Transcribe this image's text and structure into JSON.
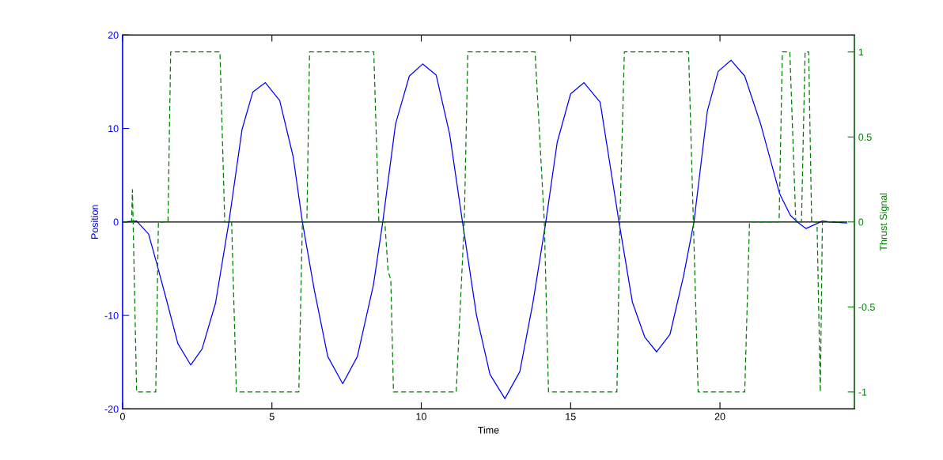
{
  "chart_data": {
    "type": "line",
    "xlabel": "Time",
    "ylabel": "Position",
    "y2label": "Thrust Signal",
    "xlim": [
      0,
      24.5
    ],
    "xticks": [
      0,
      5,
      10,
      15,
      20
    ],
    "ylim": [
      -20,
      20
    ],
    "yticks": [
      -20,
      -10,
      0,
      10,
      20
    ],
    "y2lim": [
      -1.1,
      1.1
    ],
    "y2ticks": [
      -1,
      -0.5,
      0,
      0.5,
      1
    ],
    "series": [
      {
        "color": "#0000ff",
        "axis": "y",
        "line_style": "solid",
        "x": [
          0,
          0.47,
          0.87,
          1.14,
          1.5,
          1.85,
          2.28,
          2.66,
          3.11,
          3.56,
          4.0,
          4.36,
          4.78,
          5.26,
          5.71,
          6.02,
          6.42,
          6.87,
          7.37,
          7.86,
          8.4,
          8.71,
          9.14,
          9.6,
          10.05,
          10.5,
          10.95,
          11.38,
          11.85,
          12.3,
          12.8,
          13.3,
          13.74,
          14.17,
          14.55,
          15.0,
          15.45,
          15.99,
          16.62,
          17.07,
          17.48,
          17.88,
          18.33,
          18.78,
          19.13,
          19.58,
          19.94,
          20.37,
          20.83,
          21.37,
          22.0,
          22.36,
          22.63,
          22.88,
          23.16,
          23.43,
          23.7,
          24.24
        ],
        "values": [
          0,
          0.1,
          -1.3,
          -4.4,
          -8.7,
          -13,
          -15.3,
          -13.6,
          -8.7,
          0,
          9.9,
          13.9,
          14.9,
          13,
          7,
          0,
          -7.3,
          -14.4,
          -17.3,
          -14.4,
          -6.7,
          0,
          10.5,
          15.6,
          16.9,
          15.7,
          9.4,
          0,
          -10,
          -16.3,
          -18.9,
          -16,
          -8.6,
          0,
          8.5,
          13.7,
          14.9,
          12.8,
          0,
          -8.6,
          -12.3,
          -13.9,
          -12,
          -5.8,
          0,
          11.9,
          16.1,
          17.3,
          15.6,
          10.4,
          3,
          0.7,
          -0.1,
          -0.7,
          -0.3,
          0.1,
          0,
          -0.1
        ]
      },
      {
        "color": "#007f00",
        "axis": "y2",
        "line_style": "dashed",
        "x": [
          0,
          0.3,
          0.33,
          0.47,
          1.11,
          1.2,
          1.52,
          1.61,
          3.26,
          3.42,
          3.65,
          3.81,
          5.9,
          6.02,
          6.17,
          6.26,
          8.41,
          8.58,
          8.78,
          8.89,
          8.98,
          9.07,
          11.17,
          11.44,
          11.56,
          13.81,
          14.12,
          14.26,
          16.55,
          16.65,
          16.8,
          18.95,
          19.11,
          19.27,
          20.83,
          20.99,
          21.98,
          22.09,
          22.34,
          22.54,
          22.73,
          22.85,
          22.97,
          23.07,
          23.25,
          23.36,
          23.43,
          24.24
        ],
        "values": [
          0,
          0,
          0.19,
          -1,
          -1,
          0,
          0,
          1,
          1,
          0,
          0,
          -1,
          -1,
          0,
          0,
          1,
          1,
          0,
          0,
          -0.29,
          -0.34,
          -1,
          -1,
          0,
          1,
          1,
          0,
          -1,
          -1,
          0,
          1,
          1,
          0,
          -1,
          -1,
          0,
          0,
          1,
          1,
          0,
          0,
          1,
          1,
          0,
          0,
          -1,
          0,
          0
        ]
      },
      {
        "color": "#000000",
        "axis": "y",
        "line_style": "solid",
        "x": [
          0,
          24.24
        ],
        "values": [
          0,
          0
        ]
      }
    ]
  }
}
